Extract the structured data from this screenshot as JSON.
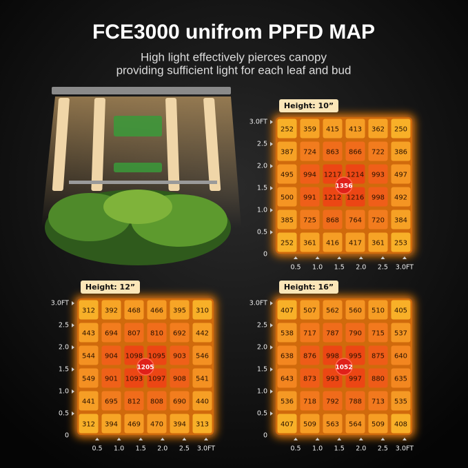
{
  "header": {
    "title": "FCE3000 unifrom PPFD MAP",
    "subtitle": [
      "High light effectively pierces canopy",
      "providing sufficient light for each leaf and bud"
    ]
  },
  "maps": [
    {
      "label": "Height: 10”",
      "center": "1356",
      "rows": [
        [
          "252",
          "359",
          "415",
          "413",
          "362",
          "250"
        ],
        [
          "387",
          "724",
          "863",
          "866",
          "722",
          "386"
        ],
        [
          "495",
          "994",
          "1217",
          "1214",
          "993",
          "497"
        ],
        [
          "500",
          "991",
          "1212",
          "1216",
          "998",
          "492"
        ],
        [
          "385",
          "725",
          "868",
          "764",
          "720",
          "384"
        ],
        [
          "252",
          "361",
          "416",
          "417",
          "361",
          "253"
        ]
      ],
      "y_labels": [
        "3.0FT",
        "2.5",
        "2.0",
        "1.5",
        "1.0",
        "0.5",
        "0"
      ],
      "x_labels": [
        "0.5",
        "1.0",
        "1.5",
        "2.0",
        "2.5",
        "3.0FT"
      ]
    },
    {
      "label": "Height: 12”",
      "center": "1205",
      "rows": [
        [
          "312",
          "392",
          "468",
          "466",
          "395",
          "310"
        ],
        [
          "443",
          "694",
          "807",
          "810",
          "692",
          "442"
        ],
        [
          "544",
          "904",
          "1098",
          "1095",
          "903",
          "546"
        ],
        [
          "549",
          "901",
          "1093",
          "1097",
          "908",
          "541"
        ],
        [
          "441",
          "695",
          "812",
          "808",
          "690",
          "440"
        ],
        [
          "312",
          "394",
          "469",
          "470",
          "394",
          "313"
        ]
      ],
      "y_labels": [
        "3.0FT",
        "2.5",
        "2.0",
        "1.5",
        "1.0",
        "0.5",
        "0"
      ],
      "x_labels": [
        "0.5",
        "1.0",
        "1.5",
        "2.0",
        "2.5",
        "3.0FT"
      ]
    },
    {
      "label": "Height: 16”",
      "center": "1052",
      "rows": [
        [
          "407",
          "507",
          "562",
          "560",
          "510",
          "405"
        ],
        [
          "538",
          "717",
          "787",
          "790",
          "715",
          "537"
        ],
        [
          "638",
          "876",
          "998",
          "995",
          "875",
          "640"
        ],
        [
          "643",
          "873",
          "993",
          "997",
          "880",
          "635"
        ],
        [
          "536",
          "718",
          "792",
          "788",
          "713",
          "535"
        ],
        [
          "407",
          "509",
          "563",
          "564",
          "509",
          "408"
        ]
      ],
      "y_labels": [
        "3.0FT",
        "2.5",
        "2.0",
        "1.5",
        "1.0",
        "0.5",
        "0"
      ],
      "x_labels": [
        "0.5",
        "1.0",
        "1.5",
        "2.0",
        "2.5",
        "3.0FT"
      ]
    }
  ]
}
